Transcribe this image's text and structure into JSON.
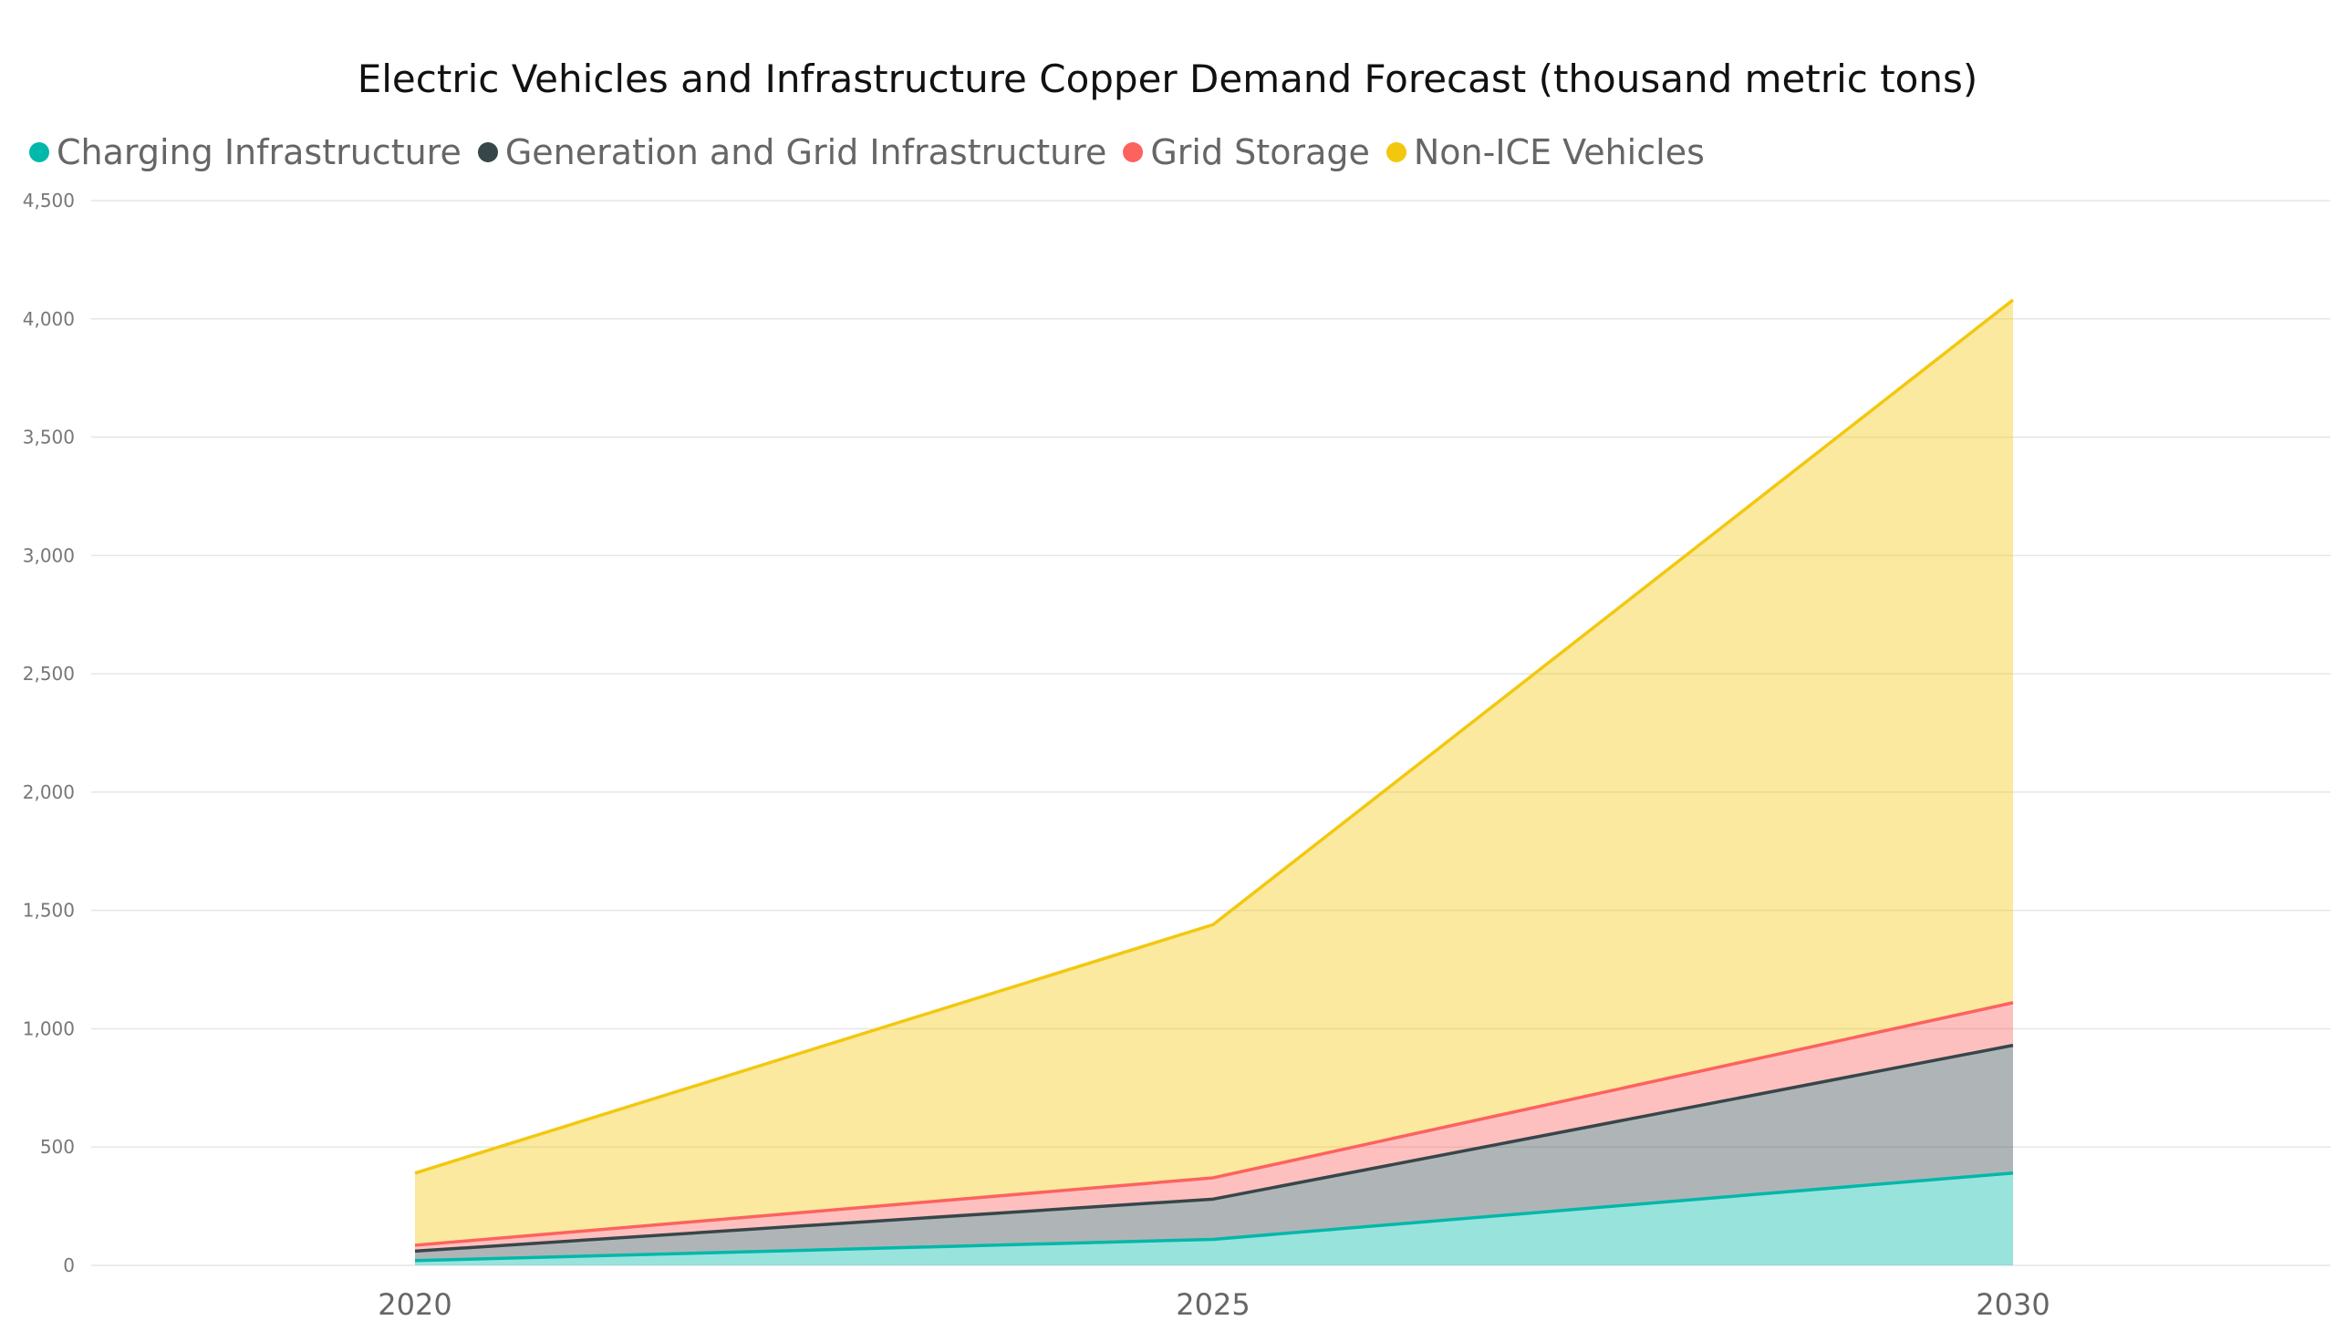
{
  "chart_data": {
    "type": "area",
    "stacked": true,
    "title": "Electric Vehicles and Infrastructure Copper Demand Forecast (thousand metric tons)",
    "x": [
      "2020",
      "2025",
      "2030"
    ],
    "ylim": [
      0,
      4500
    ],
    "yticks": [
      0,
      500,
      1000,
      1500,
      2000,
      2500,
      3000,
      3500,
      4000,
      4500
    ],
    "ytick_labels": [
      "0",
      "500",
      "1,000",
      "1,500",
      "2,000",
      "2,500",
      "3,000",
      "3,500",
      "4,000",
      "4,500"
    ],
    "grid": true,
    "legend_position": "top-left",
    "series": [
      {
        "name": "Charging Infrastructure",
        "values": [
          20,
          110,
          390
        ],
        "color": "#01B8AA"
      },
      {
        "name": "Generation and Grid Infrastructure",
        "values": [
          40,
          170,
          540
        ],
        "color": "#374649"
      },
      {
        "name": "Grid Storage",
        "values": [
          25,
          90,
          180
        ],
        "color": "#FD625E"
      },
      {
        "name": "Non-ICE Vehicles",
        "values": [
          305,
          1070,
          2970
        ],
        "color": "#F2C80F"
      }
    ]
  }
}
